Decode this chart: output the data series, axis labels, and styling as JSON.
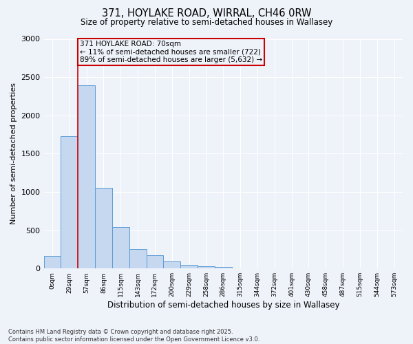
{
  "title1": "371, HOYLAKE ROAD, WIRRAL, CH46 0RW",
  "title2": "Size of property relative to semi-detached houses in Wallasey",
  "xlabel": "Distribution of semi-detached houses by size in Wallasey",
  "ylabel": "Number of semi-detached properties",
  "bar_labels": [
    "0sqm",
    "29sqm",
    "57sqm",
    "86sqm",
    "115sqm",
    "143sqm",
    "172sqm",
    "200sqm",
    "229sqm",
    "258sqm",
    "286sqm",
    "315sqm",
    "344sqm",
    "372sqm",
    "401sqm",
    "430sqm",
    "458sqm",
    "487sqm",
    "515sqm",
    "544sqm",
    "573sqm"
  ],
  "bar_values": [
    165,
    1730,
    2390,
    1050,
    540,
    250,
    170,
    90,
    45,
    30,
    20,
    0,
    0,
    0,
    0,
    0,
    0,
    0,
    0,
    0,
    0
  ],
  "bar_color": "#c5d8f0",
  "bar_edge_color": "#5b9bd5",
  "property_sqm": 70,
  "pct_smaller": 11,
  "pct_larger": 89,
  "count_smaller": 722,
  "count_larger": 5632,
  "annotation_box_color": "#cc0000",
  "vline_color": "#cc0000",
  "ylim": [
    0,
    3000
  ],
  "yticks": [
    0,
    500,
    1000,
    1500,
    2000,
    2500,
    3000
  ],
  "footnote": "Contains HM Land Registry data © Crown copyright and database right 2025.\nContains public sector information licensed under the Open Government Licence v3.0.",
  "bg_color": "#eef2f9",
  "grid_color": "#ffffff",
  "font_family": "DejaVu Sans"
}
